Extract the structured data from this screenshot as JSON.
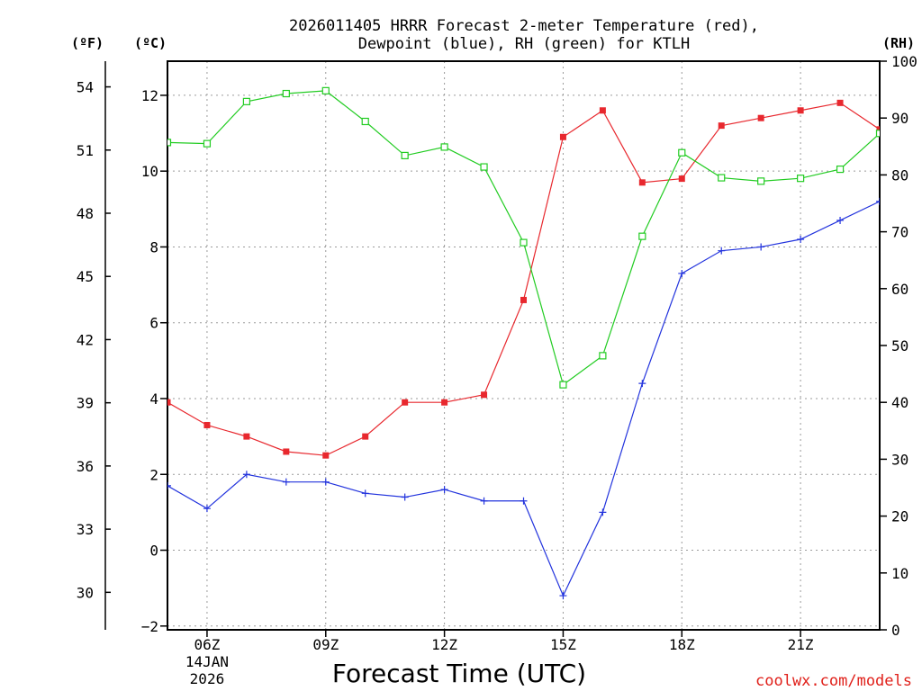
{
  "chart_data": {
    "type": "line",
    "title_line1": "2026011405 HRRR Forecast 2-meter Temperature (red),",
    "title_line2": "Dewpoint (blue), RH (green) for KTLH",
    "xlabel": "Forecast Time (UTC)",
    "credit": "coolwx.com/models",
    "units": {
      "f": "(ºF)",
      "c": "(ºC)",
      "rh": "(RH)"
    },
    "x_hours": [
      5,
      6,
      7,
      8,
      9,
      10,
      11,
      12,
      13,
      14,
      15,
      16,
      17,
      18,
      19,
      20,
      21,
      22,
      23
    ],
    "xlim": [
      5,
      23
    ],
    "x_ticks": [
      {
        "hour": 6,
        "label": "06Z",
        "sub1": "14JAN",
        "sub2": "2026"
      },
      {
        "hour": 9,
        "label": "09Z"
      },
      {
        "hour": 12,
        "label": "12Z"
      },
      {
        "hour": 15,
        "label": "15Z"
      },
      {
        "hour": 18,
        "label": "18Z"
      },
      {
        "hour": 21,
        "label": "21Z"
      }
    ],
    "celsius_axis": {
      "lim": [
        -2.1,
        12.9
      ],
      "ticks": [
        "-2",
        "0",
        "2",
        "4",
        "6",
        "8",
        "10",
        "12"
      ]
    },
    "fahrenheit_axis": {
      "ticks": [
        "30",
        "33",
        "36",
        "39",
        "42",
        "45",
        "48",
        "51",
        "54"
      ]
    },
    "rh_axis": {
      "lim": [
        0,
        100
      ],
      "ticks": [
        "0",
        "10",
        "20",
        "30",
        "40",
        "50",
        "60",
        "70",
        "80",
        "90",
        "100"
      ]
    },
    "series": [
      {
        "name": "Temperature",
        "unit": "C",
        "color": "#e8282e",
        "marker": "square-filled",
        "values": [
          3.9,
          3.3,
          3.0,
          2.6,
          2.5,
          3.0,
          3.9,
          3.9,
          4.1,
          6.6,
          10.9,
          11.6,
          9.7,
          9.8,
          11.2,
          11.4,
          11.6,
          11.8,
          11.1
        ]
      },
      {
        "name": "Dewpoint",
        "unit": "C",
        "color": "#2233dd",
        "marker": "plus",
        "values": [
          1.7,
          1.1,
          2.0,
          1.8,
          1.8,
          1.5,
          1.4,
          1.6,
          1.3,
          1.3,
          -1.2,
          1.0,
          4.4,
          7.3,
          7.9,
          8.0,
          8.2,
          8.7,
          9.2
        ]
      },
      {
        "name": "RH",
        "unit": "%",
        "color": "#22cc22",
        "marker": "square-open",
        "values": [
          85.7,
          85.5,
          92.9,
          94.3,
          94.8,
          89.4,
          83.4,
          84.9,
          81.4,
          68.1,
          43.1,
          48.2,
          69.2,
          83.9,
          79.5,
          78.9,
          79.4,
          81.0,
          87.3
        ]
      }
    ]
  }
}
